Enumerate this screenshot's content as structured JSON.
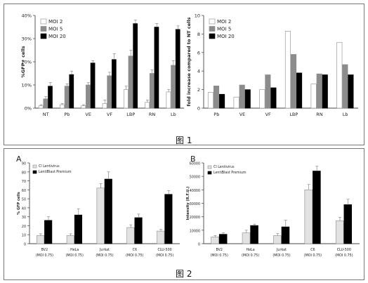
{
  "figure1": {
    "caption": "图 1",
    "charts": [
      {
        "type": "bar",
        "ylabel": "%GFP+ cells",
        "ylim": [
          0,
          40
        ],
        "yticks": [
          "0%",
          "10%",
          "20%",
          "30%",
          "40%"
        ],
        "categories": [
          "NT",
          "Pb",
          "VE",
          "VF",
          "LBP",
          "RN",
          "Lb"
        ],
        "series": [
          {
            "name": "MOI 2",
            "fill": "#ffffff",
            "values": [
              1,
              1.5,
              1,
              2,
              8,
              2.5,
              7
            ],
            "errors": [
              0.5,
              0.5,
              0.5,
              1.5,
              1.5,
              1,
              1
            ]
          },
          {
            "name": "MOI 5",
            "fill": "#8c8c8c",
            "values": [
              4,
              9.5,
              10,
              14,
              22.5,
              15,
              18.5
            ],
            "errors": [
              1,
              1,
              1,
              1.5,
              2.5,
              1.5,
              2
            ]
          },
          {
            "name": "MOI 20",
            "fill": "#000000",
            "values": [
              9.5,
              14.5,
              19.5,
              21,
              36.5,
              35,
              34
            ],
            "errors": [
              1.5,
              1.5,
              1,
              2.5,
              1.5,
              1.5,
              1.5
            ]
          }
        ],
        "legend": "top-left"
      },
      {
        "type": "bar",
        "ylabel": "fold increase compared to NT cells",
        "ylim": [
          0,
          10
        ],
        "yticks": [
          "0",
          "2",
          "4",
          "6",
          "8",
          "10"
        ],
        "categories": [
          "Pb",
          "VE",
          "VF",
          "LBP",
          "RN",
          "Lb"
        ],
        "series": [
          {
            "name": "MOI 2",
            "fill": "#ffffff",
            "values": [
              1.7,
              1.2,
              2.0,
              8.3,
              2.6,
              7.1
            ]
          },
          {
            "name": "MOI 5",
            "fill": "#8c8c8c",
            "values": [
              2.4,
              2.5,
              3.6,
              5.8,
              3.7,
              4.7
            ]
          },
          {
            "name": "MOI 20",
            "fill": "#000000",
            "values": [
              1.5,
              2.0,
              2.2,
              3.8,
              3.6,
              3.6
            ]
          }
        ],
        "legend": "top-left"
      }
    ]
  },
  "figure2": {
    "caption": "图 2",
    "charts": [
      {
        "type": "bar",
        "panel_label": "A",
        "ylabel": "% GFP cells",
        "ylim": [
          0,
          90
        ],
        "yticks": [
          "0",
          "10",
          "20",
          "30",
          "40",
          "50",
          "60",
          "70",
          "80",
          "90"
        ],
        "categories": [
          [
            "BV2",
            "(MOI 0.75)"
          ],
          [
            "HeLa",
            "(MOI 0.75)"
          ],
          [
            "Jurkat",
            "(MOI 0.75)"
          ],
          [
            "C6",
            "(MOI 0.75)"
          ],
          [
            "CLU-500",
            "(MOI 0.75)"
          ]
        ],
        "series": [
          {
            "name": "Cl Lentivirus",
            "fill": "#e2e2e2",
            "values": [
              9,
              9,
              62,
              18,
              14
            ],
            "errors": [
              2,
              2,
              5,
              3,
              2
            ]
          },
          {
            "name": "LentiBlast Premium",
            "fill": "#000000",
            "values": [
              26,
              32,
              72,
              29,
              55
            ],
            "errors": [
              4,
              7,
              8,
              4,
              4
            ]
          }
        ],
        "legend": "top-left"
      },
      {
        "type": "bar",
        "panel_label": "B",
        "ylabel": "Intensity (R.F.U.)",
        "ylim": [
          0,
          60000
        ],
        "yticks": [
          "0",
          "10000",
          "20000",
          "30000",
          "40000",
          "50000",
          "60000"
        ],
        "categories": [
          [
            "BV2",
            "(MOI 0.75)"
          ],
          [
            "HeLa",
            "(MOI 0.75)"
          ],
          [
            "Jurkat",
            "(MOI 0.75)"
          ],
          [
            "C6",
            "(MOI 0.75)"
          ],
          [
            "CLU-500",
            "(MOI 0.75)"
          ]
        ],
        "series": [
          {
            "name": "Cl Lentivirus",
            "fill": "#e2e2e2",
            "values": [
              5000,
              8000,
              6000,
              40000,
              17000
            ],
            "errors": [
              1000,
              2000,
              1500,
              4000,
              2500
            ]
          },
          {
            "name": "LentiBlast Premium",
            "fill": "#000000",
            "values": [
              7000,
              13500,
              12500,
              54000,
              29000
            ],
            "errors": [
              1000,
              1000,
              5000,
              3500,
              4000
            ]
          }
        ],
        "legend": "top-left"
      }
    ]
  }
}
